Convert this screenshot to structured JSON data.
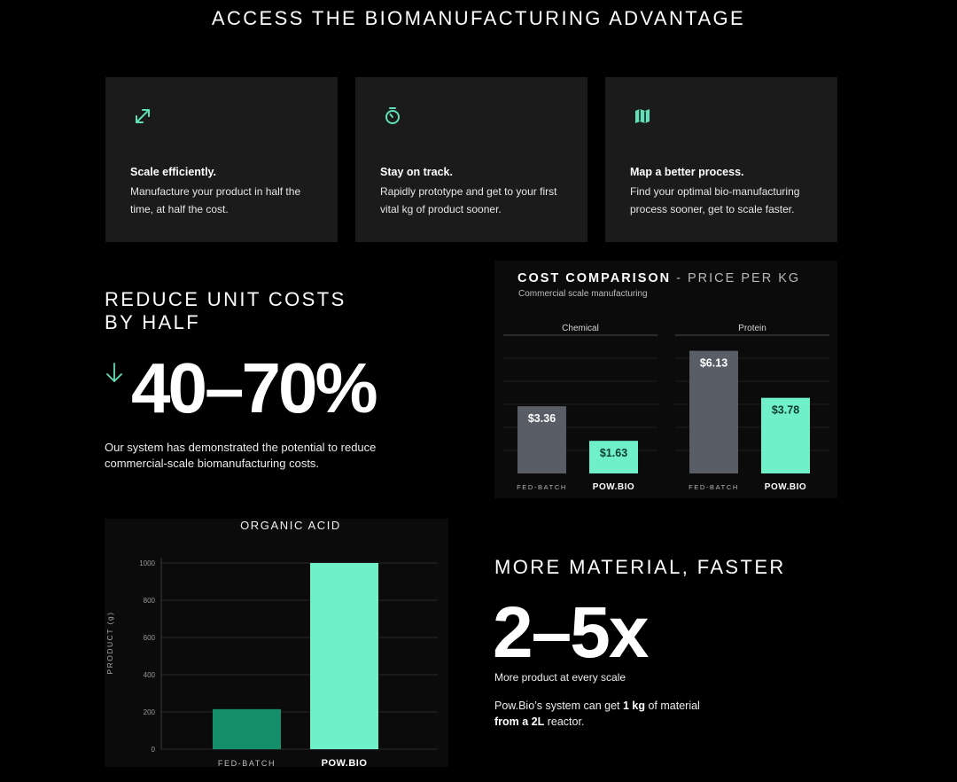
{
  "page": {
    "title": "ACCESS THE BIOMANUFACTURING ADVANTAGE"
  },
  "accent_color": "#5fe0b8",
  "features": [
    {
      "icon": "expand-arrows-icon",
      "title": "Scale efficiently.",
      "body": "Manufacture your product in half the time, at half the cost."
    },
    {
      "icon": "stopwatch-icon",
      "title": "Stay on track.",
      "body": "Rapidly prototype and get to your first vital kg of product sooner."
    },
    {
      "icon": "map-icon",
      "title": "Map a better process.",
      "body": "Find your optimal bio-manufacturing process sooner, get to scale faster."
    }
  ],
  "reduce": {
    "heading_line1": "REDUCE UNIT COSTS",
    "heading_line2": "BY HALF",
    "icon": "down-arrow-icon",
    "big_value": "40–70%",
    "body": "Our system has demonstrated the potential to reduce commercial-scale biomanufacturing costs."
  },
  "more": {
    "heading": "MORE MATERIAL, FASTER",
    "big_value": "2–5x",
    "subtitle": "More product at every scale",
    "body_prefix": "Pow.Bio’s system can get ",
    "body_bold1": "1 kg",
    "body_mid": " of material ",
    "body_bold2": "from a 2L",
    "body_suffix": " reactor."
  },
  "chart_data": [
    {
      "type": "bar",
      "title": "COST COMPARISON",
      "title_suffix": " - PRICE PER KG",
      "subtitle": "Commercial scale manufacturing",
      "groups": [
        "Chemical",
        "Protein"
      ],
      "categories": [
        "FED-BATCH",
        "POW.BIO"
      ],
      "series": [
        {
          "group": "Chemical",
          "values": [
            3.36,
            1.63
          ],
          "labels": [
            "$3.36",
            "$1.63"
          ]
        },
        {
          "group": "Protein",
          "values": [
            6.13,
            3.78
          ],
          "labels": [
            "$6.13",
            "$3.78"
          ]
        }
      ],
      "colors": [
        "#585d66",
        "#6ff0c8"
      ],
      "ylim": [
        0,
        7
      ],
      "grid": true
    },
    {
      "type": "bar",
      "title": "ORGANIC ACID",
      "categories": [
        "FED-BATCH",
        "POW.BIO"
      ],
      "values": [
        215,
        1000
      ],
      "colors": [
        "#158f6a",
        "#6ff0c8"
      ],
      "ylabel": "PRODUCT (g)",
      "yticks": [
        "0",
        "200",
        "400",
        "600",
        "800",
        "1000"
      ],
      "ylim": [
        0,
        1000
      ],
      "grid": true
    }
  ]
}
